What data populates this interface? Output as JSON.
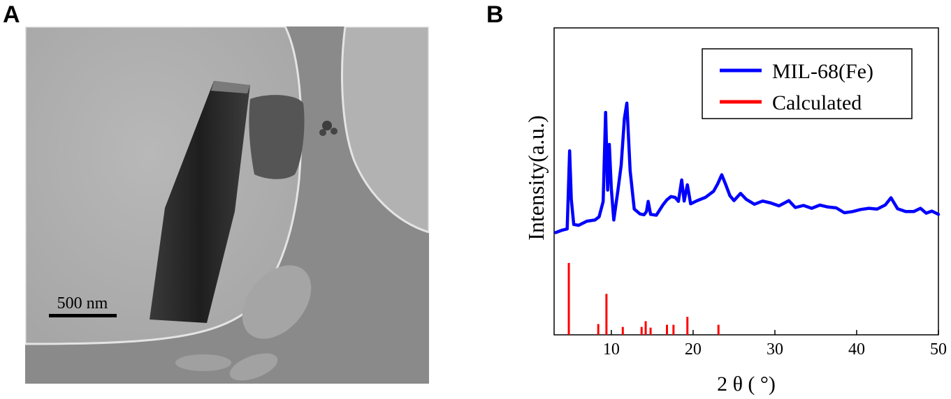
{
  "panels": {
    "a_label": "A",
    "b_label": "B"
  },
  "micrograph": {
    "scale_bar_label": "500 nm"
  },
  "chart_data": {
    "type": "line",
    "xlabel": "2 θ ( °)",
    "ylabel": "Intensity(a.u.)",
    "xlim": [
      3,
      50
    ],
    "xticks": [
      10,
      20,
      30,
      40,
      50
    ],
    "legend_position": "top-right",
    "series": [
      {
        "name": "MIL-68(Fe)",
        "color": "#0000ff",
        "points": [
          [
            3.2,
            0.04
          ],
          [
            4.0,
            0.05
          ],
          [
            4.6,
            0.06
          ],
          [
            4.9,
            0.45
          ],
          [
            5.1,
            0.2
          ],
          [
            5.4,
            0.08
          ],
          [
            6.0,
            0.08
          ],
          [
            7.0,
            0.09
          ],
          [
            8.0,
            0.1
          ],
          [
            8.5,
            0.12
          ],
          [
            9.0,
            0.2
          ],
          [
            9.3,
            0.63
          ],
          [
            9.55,
            0.25
          ],
          [
            9.75,
            0.48
          ],
          [
            10.0,
            0.25
          ],
          [
            10.3,
            0.1
          ],
          [
            10.8,
            0.25
          ],
          [
            11.2,
            0.38
          ],
          [
            11.6,
            0.6
          ],
          [
            11.9,
            0.68
          ],
          [
            12.3,
            0.35
          ],
          [
            12.8,
            0.15
          ],
          [
            13.5,
            0.13
          ],
          [
            14.0,
            0.13
          ],
          [
            14.3,
            0.15
          ],
          [
            14.5,
            0.19
          ],
          [
            14.8,
            0.13
          ],
          [
            15.5,
            0.13
          ],
          [
            16.3,
            0.17
          ],
          [
            16.8,
            0.2
          ],
          [
            17.3,
            0.22
          ],
          [
            17.8,
            0.22
          ],
          [
            18.2,
            0.19
          ],
          [
            18.6,
            0.3
          ],
          [
            18.9,
            0.2
          ],
          [
            19.3,
            0.27
          ],
          [
            19.7,
            0.18
          ],
          [
            20.5,
            0.2
          ],
          [
            21.5,
            0.22
          ],
          [
            22.5,
            0.24
          ],
          [
            23.0,
            0.28
          ],
          [
            23.5,
            0.33
          ],
          [
            24.0,
            0.27
          ],
          [
            24.5,
            0.22
          ],
          [
            25.0,
            0.2
          ],
          [
            25.8,
            0.24
          ],
          [
            26.5,
            0.2
          ],
          [
            27.5,
            0.18
          ],
          [
            28.5,
            0.2
          ],
          [
            29.5,
            0.18
          ],
          [
            30.5,
            0.17
          ],
          [
            31.7,
            0.2
          ],
          [
            32.5,
            0.17
          ],
          [
            33.5,
            0.17
          ],
          [
            34.5,
            0.16
          ],
          [
            35.5,
            0.18
          ],
          [
            36.5,
            0.16
          ],
          [
            37.5,
            0.16
          ],
          [
            38.5,
            0.14
          ],
          [
            39.5,
            0.15
          ],
          [
            40.5,
            0.15
          ],
          [
            41.5,
            0.16
          ],
          [
            42.5,
            0.16
          ],
          [
            43.5,
            0.17
          ],
          [
            44.2,
            0.21
          ],
          [
            45.0,
            0.16
          ],
          [
            46.0,
            0.15
          ],
          [
            47.0,
            0.14
          ],
          [
            47.8,
            0.16
          ],
          [
            48.5,
            0.14
          ],
          [
            49.2,
            0.14
          ],
          [
            50.0,
            0.13
          ]
        ]
      },
      {
        "name": "Calculated",
        "color": "#ff0000",
        "peaks": [
          [
            4.8,
            1.0
          ],
          [
            8.4,
            0.15
          ],
          [
            9.4,
            0.57
          ],
          [
            11.4,
            0.11
          ],
          [
            13.7,
            0.11
          ],
          [
            14.2,
            0.19
          ],
          [
            14.8,
            0.1
          ],
          [
            16.8,
            0.14
          ],
          [
            17.6,
            0.14
          ],
          [
            19.3,
            0.25
          ],
          [
            23.1,
            0.14
          ]
        ]
      }
    ]
  }
}
